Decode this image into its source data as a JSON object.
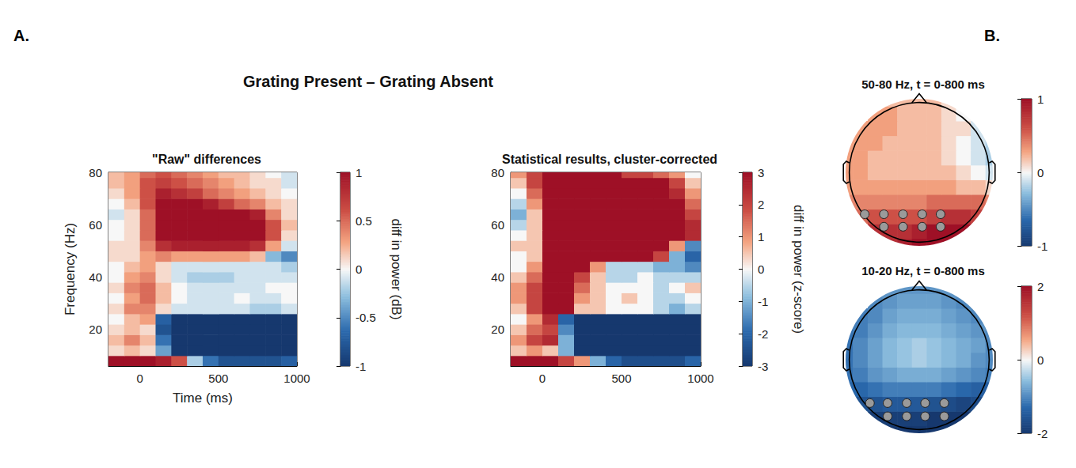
{
  "panels": [
    {
      "label": "A.",
      "title": "Grating Present – Grating Absent"
    },
    {
      "label": "B."
    }
  ],
  "chart_data": [
    {
      "type": "heatmap",
      "title": "\"Raw\" differences",
      "x_label": "Time (ms)",
      "y_label": "Frequency (Hz)",
      "colorbar_label": "diff in power (dB)",
      "x": [
        -150,
        -50,
        50,
        150,
        250,
        350,
        450,
        550,
        650,
        750,
        850,
        950
      ],
      "y": [
        8,
        12,
        16,
        20,
        24,
        28,
        32,
        36,
        40,
        44,
        48,
        52,
        56,
        60,
        64,
        68,
        72,
        76,
        80
      ],
      "values": [
        [
          1.0,
          1.2,
          1.1,
          0.9,
          0.6,
          -0.2,
          -0.6,
          -0.8,
          -0.8,
          -0.8,
          -0.8,
          -0.7
        ],
        [
          0.1,
          0.2,
          0.1,
          -0.4,
          -1.3,
          -1.5,
          -1.5,
          -1.5,
          -1.5,
          -1.5,
          -1.5,
          -1.4
        ],
        [
          0.2,
          0.4,
          0.2,
          -0.6,
          -1.4,
          -1.6,
          -1.6,
          -1.6,
          -1.6,
          -1.6,
          -1.6,
          -1.5
        ],
        [
          0.1,
          0.2,
          0.1,
          -0.8,
          -1.5,
          -1.6,
          -1.6,
          -1.6,
          -1.6,
          -1.6,
          -1.6,
          -1.5
        ],
        [
          0.0,
          0.2,
          0.3,
          -0.7,
          -1.3,
          -1.4,
          -1.4,
          -1.4,
          -1.4,
          -1.4,
          -1.3,
          -1.2
        ],
        [
          0.1,
          0.4,
          0.4,
          0.1,
          -0.1,
          -0.1,
          -0.1,
          -0.1,
          -0.1,
          -0.2,
          -0.2,
          -0.1
        ],
        [
          0.0,
          0.3,
          0.5,
          0.2,
          0.0,
          -0.1,
          -0.1,
          -0.1,
          0.0,
          -0.1,
          -0.1,
          0.0
        ],
        [
          0.1,
          0.4,
          0.5,
          0.2,
          0.0,
          -0.1,
          -0.1,
          -0.1,
          -0.1,
          -0.1,
          0.0,
          0.0
        ],
        [
          0.0,
          0.3,
          0.4,
          0.1,
          -0.1,
          -0.2,
          -0.2,
          -0.2,
          -0.1,
          -0.1,
          -0.1,
          -0.1
        ],
        [
          0.0,
          0.2,
          0.3,
          0.1,
          -0.1,
          -0.1,
          -0.1,
          -0.1,
          -0.1,
          -0.1,
          -0.1,
          -0.2
        ],
        [
          0.1,
          0.1,
          0.3,
          0.4,
          0.3,
          0.3,
          0.3,
          0.3,
          0.3,
          0.2,
          -0.3,
          -0.5
        ],
        [
          0.1,
          0.1,
          0.4,
          0.8,
          0.9,
          0.9,
          0.9,
          0.9,
          0.9,
          0.8,
          0.3,
          -0.1
        ],
        [
          0.0,
          0.1,
          0.5,
          1.1,
          1.3,
          1.3,
          1.3,
          1.3,
          1.3,
          1.2,
          0.6,
          0.1
        ],
        [
          0.0,
          0.1,
          0.5,
          1.2,
          1.5,
          1.5,
          1.5,
          1.5,
          1.4,
          1.3,
          0.6,
          0.2
        ],
        [
          -0.1,
          0.1,
          0.5,
          1.2,
          1.5,
          1.5,
          1.4,
          1.3,
          1.1,
          0.9,
          0.4,
          0.1
        ],
        [
          0.0,
          0.2,
          0.6,
          1.1,
          1.2,
          1.1,
          0.9,
          0.7,
          0.5,
          0.4,
          0.2,
          0.1
        ],
        [
          0.1,
          0.3,
          0.6,
          0.9,
          0.8,
          0.7,
          0.5,
          0.4,
          0.3,
          0.2,
          0.1,
          0.0
        ],
        [
          0.2,
          0.3,
          0.6,
          0.7,
          0.6,
          0.5,
          0.4,
          0.3,
          0.2,
          0.1,
          0.1,
          -0.1
        ],
        [
          0.2,
          0.3,
          0.5,
          0.6,
          0.5,
          0.4,
          0.3,
          0.2,
          0.2,
          0.1,
          0.0,
          -0.1
        ]
      ],
      "xlim": [
        -200,
        1000
      ],
      "ylim": [
        6,
        80
      ],
      "xticks": [
        0,
        500,
        1000
      ],
      "yticks": [
        20,
        40,
        60,
        80
      ],
      "color_range": [
        -1,
        1
      ],
      "color_ticks": [
        -1,
        -0.5,
        0,
        0.5,
        1
      ]
    },
    {
      "type": "heatmap",
      "title": "Statistical results, cluster-corrected",
      "colorbar_label": "diff in power (z-score)",
      "x": [
        -150,
        -50,
        50,
        150,
        250,
        350,
        450,
        550,
        650,
        750,
        850,
        950
      ],
      "y": [
        8,
        12,
        16,
        20,
        24,
        28,
        32,
        36,
        40,
        44,
        48,
        52,
        56,
        60,
        64,
        68,
        72,
        76,
        80
      ],
      "values": [
        [
          3,
          3.5,
          3.5,
          2,
          1,
          -1,
          -2,
          -2.5,
          -2.5,
          -2.5,
          -2.5,
          -2
        ],
        [
          0.5,
          1,
          0.5,
          -1,
          -3.5,
          -4,
          -4,
          -4,
          -4,
          -4,
          -4,
          -3.5
        ],
        [
          1,
          2,
          2.5,
          -1,
          -3.5,
          -4,
          -4,
          -4,
          -4,
          -4,
          -4,
          -3.5
        ],
        [
          0.5,
          1.5,
          2,
          -1.5,
          -4,
          -4,
          -4,
          -4,
          -4,
          -4,
          -4,
          -3.5
        ],
        [
          0,
          1,
          2.5,
          -2,
          -3.5,
          -3.5,
          -3.5,
          -3.5,
          -3.5,
          -3.5,
          -3.5,
          -3
        ],
        [
          0.5,
          2,
          3.5,
          3,
          0.5,
          0.5,
          0,
          0,
          0,
          -0.5,
          -1,
          -0.5
        ],
        [
          1,
          2,
          3.5,
          3.5,
          1,
          0.5,
          0,
          0.5,
          0,
          -0.5,
          -0.5,
          0
        ],
        [
          1,
          2,
          3.5,
          3.5,
          1.5,
          0.5,
          0,
          0,
          0,
          -0.5,
          0,
          0.5
        ],
        [
          0.5,
          1.5,
          3.5,
          3.5,
          2,
          0.5,
          -0.5,
          -0.5,
          0,
          -0.5,
          -0.5,
          -0.5
        ],
        [
          0,
          1,
          3.5,
          3.5,
          3.5,
          1,
          -0.5,
          -0.5,
          -0.5,
          -1,
          -1,
          -1.5
        ],
        [
          0,
          0.5,
          3.5,
          4,
          4,
          4,
          3.5,
          3,
          3,
          2,
          -1,
          -2
        ],
        [
          0.5,
          0.5,
          3.5,
          4,
          4,
          4,
          4,
          4,
          4,
          3.5,
          1,
          -1.5
        ],
        [
          0,
          0.5,
          3.5,
          4,
          4,
          4,
          4,
          4,
          4,
          4,
          3.5,
          2.5
        ],
        [
          -0.5,
          0.5,
          3.5,
          4,
          4,
          4,
          4,
          4,
          4,
          4,
          3.5,
          2.5
        ],
        [
          -1,
          0.5,
          3.5,
          4,
          4,
          4,
          4,
          4,
          4,
          4,
          3.5,
          2
        ],
        [
          -0.5,
          1,
          3.5,
          4,
          4,
          4,
          4,
          4,
          4,
          4,
          3,
          1.5
        ],
        [
          0,
          1.5,
          3.5,
          4,
          4,
          4,
          4,
          4,
          4,
          3.5,
          2.5,
          1
        ],
        [
          0.5,
          2,
          3.5,
          4,
          4,
          4,
          4,
          3.5,
          3.5,
          3,
          2,
          0.5
        ],
        [
          1,
          2,
          3,
          3.5,
          3.5,
          3.5,
          3,
          2,
          2,
          1.5,
          1,
          0
        ]
      ],
      "xlim": [
        -200,
        1000
      ],
      "ylim": [
        6,
        80
      ],
      "xticks": [
        0,
        500,
        1000
      ],
      "yticks": [
        20,
        40,
        60,
        80
      ],
      "color_range": [
        -3,
        3
      ],
      "color_ticks": [
        -3,
        -2,
        -1,
        0,
        1,
        2,
        3
      ]
    },
    {
      "type": "topoplot",
      "title": "50-80 Hz, t = 0-800 ms",
      "x": [
        -1,
        -0.8,
        -0.6,
        -0.4,
        -0.2,
        0,
        0.2,
        0.4,
        0.6,
        0.8,
        1
      ],
      "y": [
        -1,
        -0.8,
        -0.6,
        -0.4,
        -0.2,
        0,
        0.2,
        0.4,
        0.6,
        0.8,
        1
      ],
      "values": [
        [
          null,
          null,
          null,
          0.8,
          0.9,
          1.0,
          1.1,
          1.1,
          null,
          null,
          null
        ],
        [
          null,
          null,
          0.8,
          0.8,
          0.8,
          0.9,
          1.0,
          1.1,
          1.1,
          null,
          null
        ],
        [
          null,
          0.5,
          0.6,
          0.6,
          0.6,
          0.6,
          0.7,
          0.8,
          0.8,
          0.7,
          null
        ],
        [
          0.4,
          0.4,
          0.4,
          0.4,
          0.4,
          0.4,
          0.5,
          0.5,
          0.5,
          0.5,
          0.4
        ],
        [
          0.3,
          0.3,
          0.3,
          0.3,
          0.3,
          0.3,
          0.3,
          0.3,
          0.2,
          0.2,
          0.1
        ],
        [
          0.3,
          0.3,
          0.2,
          0.2,
          0.2,
          0.2,
          0.2,
          0.2,
          0.1,
          0.0,
          -0.1
        ],
        [
          0.3,
          0.3,
          0.2,
          0.2,
          0.2,
          0.2,
          0.2,
          0.1,
          0.0,
          -0.1,
          -0.2
        ],
        [
          0.3,
          0.3,
          0.3,
          0.2,
          0.2,
          0.2,
          0.2,
          0.1,
          0.0,
          -0.1,
          -0.2
        ],
        [
          null,
          0.3,
          0.3,
          0.3,
          0.2,
          0.2,
          0.2,
          0.1,
          0.1,
          -0.1,
          null
        ],
        [
          null,
          null,
          0.3,
          0.3,
          0.2,
          0.2,
          0.2,
          0.1,
          0.0,
          null,
          null
        ],
        [
          null,
          null,
          null,
          0.2,
          0.2,
          0.2,
          0.2,
          0.1,
          null,
          null,
          null
        ]
      ],
      "color_range": [
        -1,
        1
      ],
      "color_ticks": [
        -1,
        0,
        1
      ],
      "electrodes": {
        "x": [
          -0.74,
          -0.48,
          -0.22,
          0.04,
          0.29,
          -0.48,
          -0.22,
          0.04,
          0.29
        ],
        "y": [
          -0.57,
          -0.57,
          -0.57,
          -0.57,
          -0.57,
          -0.74,
          -0.74,
          -0.74,
          -0.74
        ]
      }
    },
    {
      "type": "topoplot",
      "title": "10-20 Hz, t = 0-800 ms",
      "x": [
        -1,
        -0.8,
        -0.6,
        -0.4,
        -0.2,
        0,
        0.2,
        0.4,
        0.6,
        0.8,
        1
      ],
      "y": [
        -1,
        -0.8,
        -0.6,
        -0.4,
        -0.2,
        0,
        0.2,
        0.4,
        0.6,
        0.8,
        1
      ],
      "values": [
        [
          null,
          null,
          null,
          -2.0,
          -2.0,
          -2.0,
          -2.1,
          -2.1,
          null,
          null,
          null
        ],
        [
          null,
          null,
          -1.9,
          -1.9,
          -1.9,
          -1.9,
          -2.0,
          -2.1,
          -2.1,
          null,
          null
        ],
        [
          null,
          -1.6,
          -1.6,
          -1.5,
          -1.5,
          -1.5,
          -1.6,
          -1.7,
          -1.8,
          -1.7,
          null
        ],
        [
          -1.3,
          -1.3,
          -1.2,
          -1.1,
          -1.1,
          -1.1,
          -1.1,
          -1.2,
          -1.3,
          -1.4,
          -1.4
        ],
        [
          -1.2,
          -1.1,
          -0.9,
          -0.8,
          -0.7,
          -0.7,
          -0.7,
          -0.8,
          -0.9,
          -1.0,
          -1.1
        ],
        [
          -1.2,
          -1.0,
          -0.8,
          -0.6,
          -0.5,
          -0.4,
          -0.5,
          -0.6,
          -0.7,
          -0.9,
          -1.0
        ],
        [
          -1.2,
          -1.0,
          -0.8,
          -0.6,
          -0.5,
          -0.4,
          -0.5,
          -0.6,
          -0.7,
          -0.8,
          -1.0
        ],
        [
          -1.2,
          -1.1,
          -0.9,
          -0.7,
          -0.6,
          -0.6,
          -0.6,
          -0.7,
          -0.8,
          -0.9,
          -1.0
        ],
        [
          null,
          -1.1,
          -1.0,
          -0.8,
          -0.7,
          -0.7,
          -0.7,
          -0.8,
          -0.9,
          -1.0,
          null
        ],
        [
          null,
          null,
          -1.0,
          -0.9,
          -0.8,
          -0.8,
          -0.8,
          -0.9,
          -1.0,
          null,
          null
        ],
        [
          null,
          null,
          null,
          -0.9,
          -0.9,
          -0.9,
          -0.9,
          -0.9,
          null,
          null,
          null
        ]
      ],
      "color_range": [
        -2,
        2
      ],
      "color_ticks": [
        -2,
        0,
        2
      ],
      "electrodes": {
        "x": [
          -0.67,
          -0.43,
          -0.17,
          0.08,
          0.34,
          -0.43,
          -0.17,
          0.08,
          0.34
        ],
        "y": [
          -0.59,
          -0.59,
          -0.59,
          -0.59,
          -0.59,
          -0.77,
          -0.77,
          -0.77,
          -0.77
        ]
      }
    }
  ]
}
